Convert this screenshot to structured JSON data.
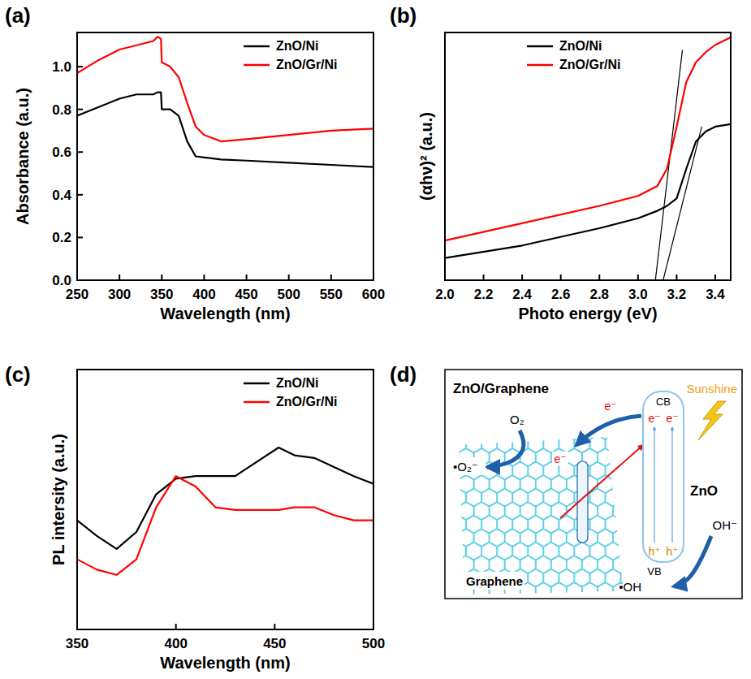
{
  "chart_data": [
    {
      "type": "line",
      "title": "(a)",
      "x_label": "Wavelength (nm)",
      "y_label": "Absorbance (a.u.)",
      "x": [
        250,
        275,
        300,
        320,
        340,
        345,
        349,
        350,
        360,
        370,
        380,
        390,
        400,
        420,
        450,
        500,
        550,
        600
      ],
      "series": [
        {
          "name": "ZnO/Ni",
          "color": "#000000",
          "values": [
            0.77,
            0.81,
            0.85,
            0.87,
            0.87,
            0.88,
            0.88,
            0.8,
            0.8,
            0.77,
            0.65,
            0.58,
            0.575,
            0.565,
            0.56,
            0.55,
            0.54,
            0.53
          ]
        },
        {
          "name": "ZnO/Gr/Ni",
          "color": "#ff0000",
          "values": [
            0.97,
            1.03,
            1.08,
            1.1,
            1.12,
            1.14,
            1.13,
            1.02,
            1.0,
            0.95,
            0.83,
            0.72,
            0.68,
            0.65,
            0.66,
            0.68,
            0.7,
            0.71
          ]
        }
      ],
      "xlim": [
        250,
        600
      ],
      "xticks": [
        250,
        300,
        350,
        400,
        450,
        500,
        550,
        600
      ],
      "ylim": [
        0,
        1.16
      ],
      "yticks": [
        {
          "value": 0,
          "label": "0.0"
        },
        0.2,
        0.4,
        0.6,
        0.8,
        {
          "value": 1,
          "label": "1.0"
        }
      ],
      "grid": false,
      "legend": "upper right"
    },
    {
      "type": "line",
      "title": "(b)",
      "x_label": "Photo energy (eV)",
      "y_label": "(αhν)² (a.u.)",
      "x": [
        2.0,
        2.4,
        2.8,
        3.0,
        3.1,
        3.15,
        3.2,
        3.25,
        3.3,
        3.35,
        3.4,
        3.48
      ],
      "series": [
        {
          "name": "ZnO/Ni",
          "color": "#000000",
          "values": [
            0.09,
            0.14,
            0.21,
            0.25,
            0.28,
            0.3,
            0.33,
            0.45,
            0.56,
            0.6,
            0.62,
            0.63
          ]
        },
        {
          "name": "ZnO/Gr/Ni",
          "color": "#ff0000",
          "values": [
            0.16,
            0.23,
            0.3,
            0.34,
            0.38,
            0.45,
            0.62,
            0.8,
            0.88,
            0.92,
            0.95,
            0.98
          ]
        }
      ],
      "fits": [
        {
          "x": [
            3.09,
            3.23
          ],
          "values": [
            0,
            0.93
          ]
        },
        {
          "x": [
            3.13,
            3.33
          ],
          "values": [
            0,
            0.62
          ]
        }
      ],
      "xlim": [
        2.0,
        3.48
      ],
      "xticks": [
        {
          "value": 2,
          "label": "2.0"
        },
        2.2,
        2.4,
        2.6,
        2.8,
        {
          "value": 3,
          "label": "3.0"
        },
        3.2,
        3.4
      ],
      "ylim": [
        0,
        1
      ],
      "tick_labels": "x",
      "grid": false,
      "legend": "upper center"
    },
    {
      "type": "line",
      "title": "(c)",
      "x_label": "Wavelength (nm)",
      "y_label": "PL intersity (a.u.)",
      "x": [
        350,
        360,
        370,
        380,
        390,
        400,
        410,
        420,
        430,
        440,
        452,
        460,
        470,
        480,
        490,
        500
      ],
      "series": [
        {
          "name": "ZnO/Ni",
          "color": "#000000",
          "values": [
            0.42,
            0.36,
            0.31,
            0.375,
            0.52,
            0.58,
            0.59,
            0.59,
            0.59,
            0.64,
            0.7,
            0.67,
            0.66,
            0.625,
            0.59,
            0.56
          ]
        },
        {
          "name": "ZnO/Gr/Ni",
          "color": "#ff0000",
          "values": [
            0.27,
            0.23,
            0.21,
            0.27,
            0.47,
            0.59,
            0.55,
            0.47,
            0.46,
            0.46,
            0.46,
            0.47,
            0.47,
            0.44,
            0.42,
            0.42
          ]
        }
      ],
      "xlim": [
        350,
        500
      ],
      "xticks": [
        350,
        400,
        450,
        500
      ],
      "ylim": [
        0,
        1
      ],
      "tick_labels": "x",
      "grid": false,
      "legend": "upper right"
    }
  ],
  "diagram": {
    "panel": "(d)",
    "title": "ZnO/Graphene",
    "graphene": "Graphene",
    "zno": "ZnO",
    "light": "Sunshine",
    "cb": "CB",
    "vb": "VB",
    "cb_electrons": [
      "e⁻",
      "e⁻"
    ],
    "transfer_electrons": [
      "e⁻",
      "e⁻"
    ],
    "holes": [
      "h⁺",
      "h⁺"
    ],
    "o2": "O₂",
    "superoxide": "•O₂⁻",
    "hydroxide": "OH⁻",
    "hydroxyl": "•OH"
  }
}
